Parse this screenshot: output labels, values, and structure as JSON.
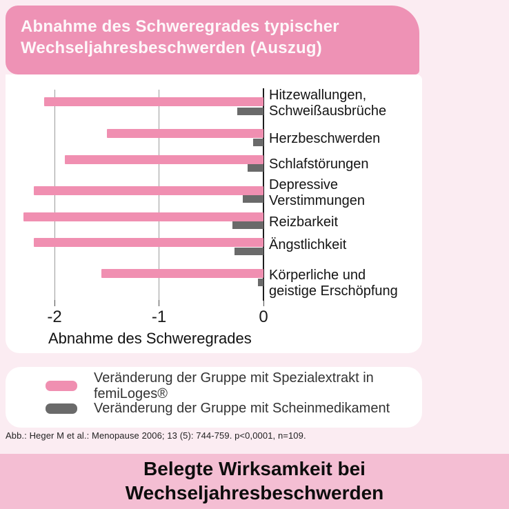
{
  "header": {
    "title_line1": "Abnahme des Schweregrades typischer",
    "title_line2": "Wechseljahresbeschwerden (Auszug)"
  },
  "chart_data": {
    "type": "bar",
    "orientation": "horizontal",
    "categories": [
      "Hitzewallungen,\nSchweißausbrüche",
      "Herzbeschwerden",
      "Schlafstörungen",
      "Depressive\nVerstimmungen",
      "Reizbarkeit",
      "Ängstlichkeit",
      "Körperliche und\ngeistige Erschöpfung"
    ],
    "series": [
      {
        "name": "Veränderung der Gruppe mit Spezialextrakt in femiLoges®",
        "color": "#f08fb1",
        "values": [
          -2.1,
          -1.5,
          -1.9,
          -2.2,
          -2.3,
          -2.2,
          -1.55
        ]
      },
      {
        "name": "Veränderung der Gruppe mit Scheinmedikament",
        "color": "#6a6a6a",
        "values": [
          -0.25,
          -0.1,
          -0.15,
          -0.2,
          -0.3,
          -0.28,
          -0.05
        ]
      }
    ],
    "xlabel": "Abnahme des Schweregrades",
    "xticks": [
      -2,
      -1,
      0
    ],
    "xlim": [
      -2.45,
      0
    ],
    "grid": "vertical gridlines at -2 and -1, solid zero axis at right",
    "legend_position": "below chart in separate white card"
  },
  "footnote": "Abb.: Heger M et al.: Menopause 2006; 13 (5): 744-759. p<0,0001, n=109.",
  "banner": {
    "line1": "Belegte Wirksamkeit bei",
    "line2": "Wechseljahresbeschwerden"
  },
  "colors": {
    "page_background": "#fbecf2",
    "header_pink": "#ee92b5",
    "bar_pink": "#f08fb1",
    "bar_gray": "#6a6a6a",
    "banner_pink": "#f4bed3",
    "card_white": "#ffffff"
  }
}
